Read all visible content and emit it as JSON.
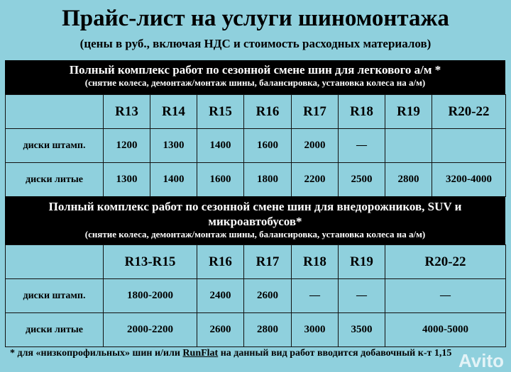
{
  "title": "Прайс-лист на услуги шиномонтажа",
  "subtitle": "(цены в руб., включая НДС и стоимость расходных материалов)",
  "section1": {
    "heading": "Полный комплекс работ по сезонной смене шин для легкового а/м *",
    "note": "(снятие колеса, демонтаж/монтаж шины, балансировка, установка колеса на а/м)",
    "columns": [
      "R13",
      "R14",
      "R15",
      "R16",
      "R17",
      "R18",
      "R19",
      "R20-22"
    ],
    "rows": [
      {
        "label": "диски штамп.",
        "values": [
          "1200",
          "1300",
          "1400",
          "1600",
          "2000",
          "—",
          "",
          ""
        ]
      },
      {
        "label": "диски литые",
        "values": [
          "1300",
          "1400",
          "1600",
          "1800",
          "2200",
          "2500",
          "2800",
          "3200-4000"
        ]
      }
    ]
  },
  "section2": {
    "heading": "Полный комплекс работ по сезонной смене шин для внедорожников, SUV и микроавтобусов*",
    "note": "(снятие колеса, демонтаж/монтаж шины, балансировка, установка колеса на а/м)",
    "columns": [
      "R13-R15",
      "R16",
      "R17",
      "R18",
      "R19",
      "R20-22"
    ],
    "rows": [
      {
        "label": "диски штамп.",
        "values": [
          "1800-2000",
          "2400",
          "2600",
          "—",
          "—",
          "—"
        ]
      },
      {
        "label": "диски литые",
        "values": [
          "2000-2200",
          "2600",
          "2800",
          "3000",
          "3500",
          "4000-5000"
        ]
      }
    ]
  },
  "footnote": {
    "prefix": "* для «низкопрофильных» шин и/или ",
    "link": "RunFlat",
    "suffix": " на данный вид работ вводится добавочный к-т 1,15"
  },
  "watermark": "Avito"
}
